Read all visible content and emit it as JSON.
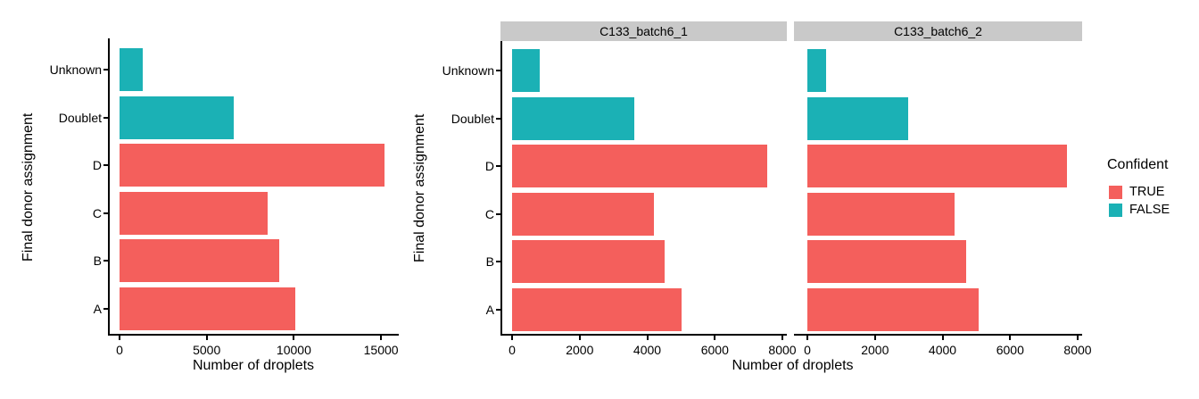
{
  "colors": {
    "background": "#FFFFFF",
    "axis": "#000000",
    "strip_bg": "#C9C9C9",
    "confident_true": "#F45F5C",
    "confident_false": "#1BB1B5"
  },
  "legend": {
    "title": "Confident",
    "items": [
      {
        "label": "TRUE",
        "color": "#F45F5C"
      },
      {
        "label": "FALSE",
        "color": "#1BB1B5"
      }
    ]
  },
  "chart_data": [
    {
      "type": "bar",
      "orientation": "horizontal",
      "panel_label": "",
      "xlabel": "Number of droplets",
      "ylabel": "Final donor assignment",
      "categories": [
        "Unknown",
        "Doublet",
        "D",
        "C",
        "B",
        "A"
      ],
      "values": [
        1320,
        6570,
        15200,
        8500,
        9160,
        10070
      ],
      "confident": [
        false,
        false,
        true,
        true,
        true,
        true
      ],
      "x_ticks": [
        0,
        5000,
        10000,
        15000
      ],
      "xlim": [
        0,
        16700
      ],
      "grid": false,
      "legend_position": "none"
    },
    {
      "type": "bar",
      "orientation": "horizontal",
      "xlabel": "Number of droplets",
      "ylabel": "Final donor assignment",
      "categories": [
        "Unknown",
        "Doublet",
        "D",
        "C",
        "B",
        "A"
      ],
      "confident": [
        false,
        false,
        true,
        true,
        true,
        true
      ],
      "facets": [
        {
          "label": "C133_batch6_1",
          "values": [
            820,
            3620,
            7560,
            4200,
            4520,
            5020
          ]
        },
        {
          "label": "C133_batch6_2",
          "values": [
            560,
            2980,
            7690,
            4350,
            4700,
            5070
          ]
        }
      ],
      "x_ticks": [
        0,
        2000,
        4000,
        6000,
        8000
      ],
      "xlim": [
        0,
        8500
      ],
      "grid": false,
      "legend_position": "right"
    }
  ]
}
